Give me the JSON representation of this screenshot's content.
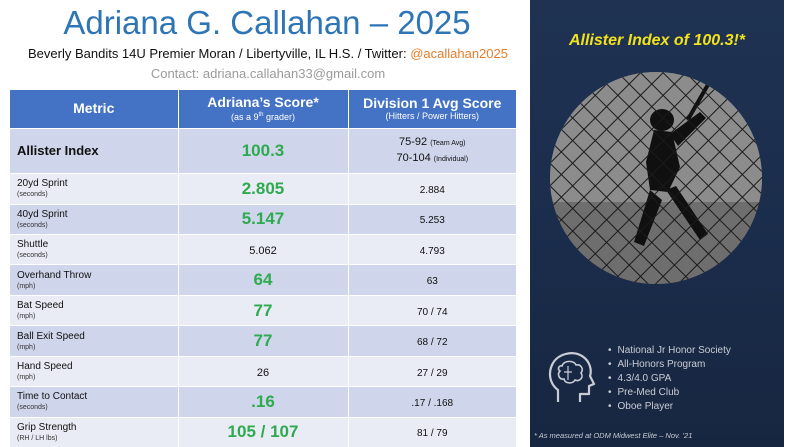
{
  "header": {
    "title": "Adriana G. Callahan – 2025",
    "subtitle": "Beverly Bandits 14U Premier Moran / Libertyville, IL H.S. / Twitter: ",
    "twitter": "@acallahan2025",
    "contact": "Contact: adriana.callahan33@gmail.com"
  },
  "table": {
    "columns": [
      {
        "label": "Metric",
        "sub": ""
      },
      {
        "label": "Adriana’s Score*",
        "sub": "(as a 9th grader)"
      },
      {
        "label": "Division 1 Avg Score",
        "sub": "(Hitters / Power Hitters)"
      }
    ],
    "rows": [
      {
        "metric": "Allister Index",
        "unit": "",
        "score": "100.3",
        "highlight": true,
        "avg": "",
        "avg_lines": [
          {
            "value": "75-92",
            "note": "(Team Avg)"
          },
          {
            "value": "70-104",
            "note": "(Individual)"
          }
        ]
      },
      {
        "metric": "20yd Sprint",
        "unit": "(seconds)",
        "score": "2.805",
        "highlight": true,
        "avg": "2.884"
      },
      {
        "metric": "40yd Sprint",
        "unit": "(seconds)",
        "score": "5.147",
        "highlight": true,
        "avg": "5.253"
      },
      {
        "metric": "Shuttle",
        "unit": "(seconds)",
        "score": "5.062",
        "highlight": false,
        "avg": "4.793"
      },
      {
        "metric": "Overhand Throw",
        "unit": "(mph)",
        "score": "64",
        "highlight": true,
        "avg": "63"
      },
      {
        "metric": "Bat Speed",
        "unit": "(mph)",
        "score": "77",
        "highlight": true,
        "avg": "70 / 74"
      },
      {
        "metric": "Ball Exit Speed",
        "unit": "(mph)",
        "score": "77",
        "highlight": true,
        "avg": "68 / 72"
      },
      {
        "metric": "Hand Speed",
        "unit": "(mph)",
        "score": "26",
        "highlight": false,
        "avg": "27 / 29"
      },
      {
        "metric": "Time to Contact",
        "unit": "(seconds)",
        "score": ".16",
        "highlight": true,
        "avg": ".17 / .168"
      },
      {
        "metric": "Grip Strength",
        "unit": "(RH / LH lbs)",
        "score": "105 / 107",
        "highlight": true,
        "avg": "81 / 79"
      }
    ]
  },
  "panel": {
    "title": "Allister Index of 100.3!*",
    "photo": "player-batting-photo",
    "icon": "brain-head-icon",
    "facts": [
      "National Jr Honor Society",
      "All-Honors Program",
      "4.3/4.0 GPA",
      "Pre-Med Club",
      "Oboe Player"
    ],
    "footnote": "* As measured at ODM Midwest Elite – Nov. ’21"
  },
  "colors": {
    "title": "#2e75b6",
    "twitter": "#e87d2a",
    "header_bg": "#4472c4",
    "row_odd": "#cfd5ea",
    "row_even": "#e9ebf5",
    "highlight": "#2eaa4f",
    "panel_bg": "#1f3252",
    "panel_title": "#f2e21b"
  }
}
